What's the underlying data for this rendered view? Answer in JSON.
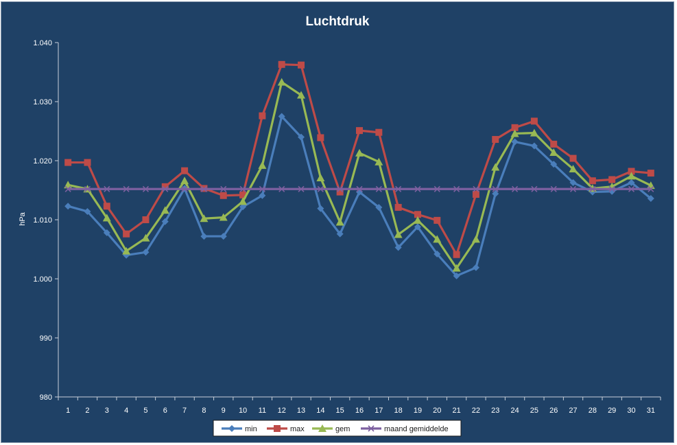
{
  "chart_data": {
    "type": "line",
    "title": "Luchtdruk",
    "xlabel": "",
    "ylabel": "hPa",
    "ylim": [
      980,
      1040
    ],
    "yticks": [
      980,
      990,
      1000,
      1010,
      1020,
      1030,
      1040
    ],
    "ytick_labels": [
      "980",
      "990",
      "1.000",
      "1.010",
      "1.020",
      "1.030",
      "1.040"
    ],
    "grid": false,
    "legend_position": "bottom",
    "categories": [
      "1",
      "2",
      "3",
      "4",
      "5",
      "6",
      "7",
      "8",
      "9",
      "10",
      "11",
      "12",
      "13",
      "14",
      "15",
      "16",
      "17",
      "18",
      "19",
      "20",
      "21",
      "22",
      "23",
      "24",
      "25",
      "26",
      "27",
      "28",
      "29",
      "30",
      "31"
    ],
    "series": [
      {
        "name": "min",
        "color": "#4a7ebb",
        "marker": "diamond",
        "values": [
          1012.3,
          1011.4,
          1007.8,
          1004.0,
          1004.5,
          1009.7,
          1015.3,
          1007.2,
          1007.2,
          1012.2,
          1014.1,
          1027.5,
          1024.0,
          1011.9,
          1007.6,
          1014.7,
          1012.1,
          1005.3,
          1008.8,
          1004.2,
          1000.5,
          1001.9,
          1014.4,
          1023.2,
          1022.5,
          1019.4,
          1016.3,
          1014.7,
          1014.8,
          1016.3,
          1013.6
        ]
      },
      {
        "name": "max",
        "color": "#be4b48",
        "marker": "square",
        "values": [
          1019.7,
          1019.7,
          1012.3,
          1007.6,
          1010.0,
          1015.6,
          1018.3,
          1015.3,
          1014.1,
          1014.2,
          1027.6,
          1036.3,
          1036.2,
          1023.9,
          1014.7,
          1025.1,
          1024.8,
          1012.1,
          1010.9,
          1009.9,
          1004.1,
          1014.3,
          1023.6,
          1025.6,
          1026.7,
          1022.8,
          1020.4,
          1016.6,
          1016.8,
          1018.2,
          1017.9
        ]
      },
      {
        "name": "gem",
        "color": "#98b954",
        "marker": "triangle",
        "values": [
          1015.9,
          1015.2,
          1010.3,
          1004.7,
          1006.9,
          1011.6,
          1016.6,
          1010.2,
          1010.4,
          1013.1,
          1019.2,
          1033.3,
          1031.1,
          1017.1,
          1009.6,
          1021.3,
          1019.8,
          1007.5,
          1009.9,
          1006.7,
          1001.8,
          1006.7,
          1018.9,
          1024.6,
          1024.7,
          1021.4,
          1018.6,
          1015.3,
          1015.6,
          1017.4,
          1015.8
        ]
      },
      {
        "name": "maand gemiddelde",
        "color": "#7d60a0",
        "marker": "x",
        "values": [
          1015.2,
          1015.2,
          1015.2,
          1015.2,
          1015.2,
          1015.2,
          1015.2,
          1015.2,
          1015.2,
          1015.2,
          1015.2,
          1015.2,
          1015.2,
          1015.2,
          1015.2,
          1015.2,
          1015.2,
          1015.2,
          1015.2,
          1015.2,
          1015.2,
          1015.2,
          1015.2,
          1015.2,
          1015.2,
          1015.2,
          1015.2,
          1015.2,
          1015.2,
          1015.2,
          1015.2
        ]
      }
    ]
  }
}
